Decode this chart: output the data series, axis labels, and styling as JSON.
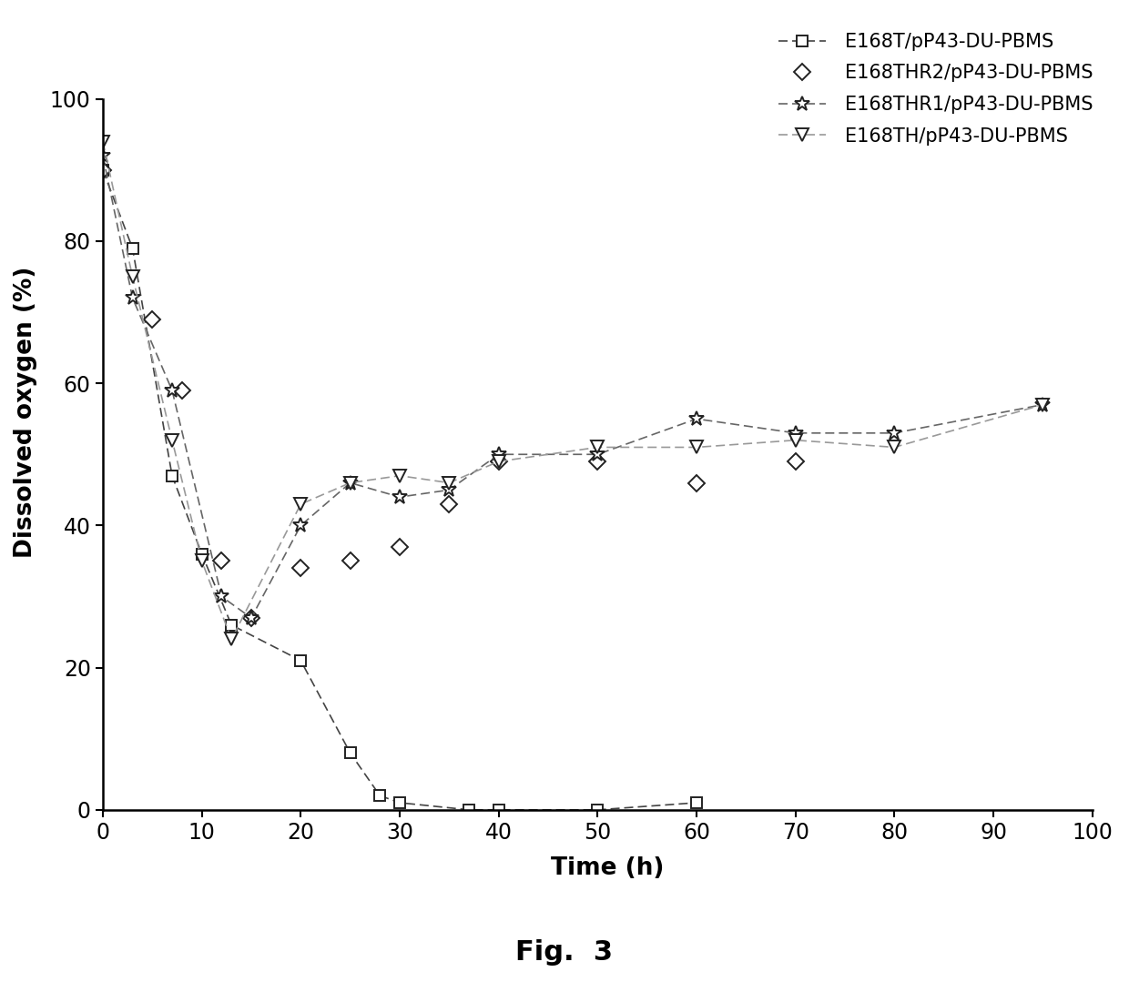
{
  "series": [
    {
      "label": "E168T/pP43-DU-PBMS",
      "x": [
        0,
        3,
        7,
        10,
        13,
        20,
        25,
        28,
        30,
        37,
        40,
        50,
        60
      ],
      "y": [
        90,
        79,
        47,
        36,
        26,
        21,
        8,
        2,
        1,
        0,
        0,
        0,
        1
      ],
      "marker": "s",
      "linestyle": "--",
      "color": "#444444",
      "markersize": 8,
      "linewidth": 1.2,
      "has_line": true
    },
    {
      "label": "E168THR2/pP43-DU-PBMS",
      "x": [
        0,
        5,
        8,
        12,
        15,
        20,
        25,
        30,
        35,
        40,
        50,
        60,
        70
      ],
      "y": [
        90,
        69,
        59,
        35,
        27,
        34,
        35,
        37,
        43,
        49,
        49,
        46,
        49
      ],
      "marker": "D",
      "linestyle": "None",
      "color": "#444444",
      "markersize": 9,
      "linewidth": 0,
      "has_line": false
    },
    {
      "label": "E168THR1/pP43-DU-PBMS",
      "x": [
        0,
        3,
        7,
        12,
        15,
        20,
        25,
        30,
        35,
        40,
        50,
        60,
        70,
        80,
        95
      ],
      "y": [
        92,
        72,
        59,
        30,
        27,
        40,
        46,
        44,
        45,
        50,
        50,
        55,
        53,
        53,
        57
      ],
      "marker": "*",
      "linestyle": "--",
      "color": "#666666",
      "markersize": 12,
      "linewidth": 1.2,
      "has_line": true
    },
    {
      "label": "E168TH/pP43-DU-PBMS",
      "x": [
        0,
        3,
        7,
        10,
        13,
        20,
        25,
        30,
        35,
        40,
        50,
        60,
        70,
        80,
        95
      ],
      "y": [
        94,
        75,
        52,
        35,
        24,
        43,
        46,
        47,
        46,
        49,
        51,
        51,
        52,
        51,
        57
      ],
      "marker": "v",
      "linestyle": "--",
      "color": "#999999",
      "markersize": 10,
      "linewidth": 1.2,
      "has_line": true
    }
  ],
  "xlabel": "Time (h)",
  "ylabel": "Dissolved oxygen (%)",
  "xlim": [
    0,
    102
  ],
  "ylim": [
    0,
    112
  ],
  "xticks": [
    0,
    10,
    20,
    30,
    40,
    50,
    60,
    70,
    80,
    90,
    100
  ],
  "yticks": [
    0,
    20,
    40,
    60,
    80,
    100
  ],
  "fig_label": "Fig.  3",
  "title_fontsize": 22,
  "axis_fontsize": 19,
  "tick_fontsize": 17,
  "legend_fontsize": 15
}
